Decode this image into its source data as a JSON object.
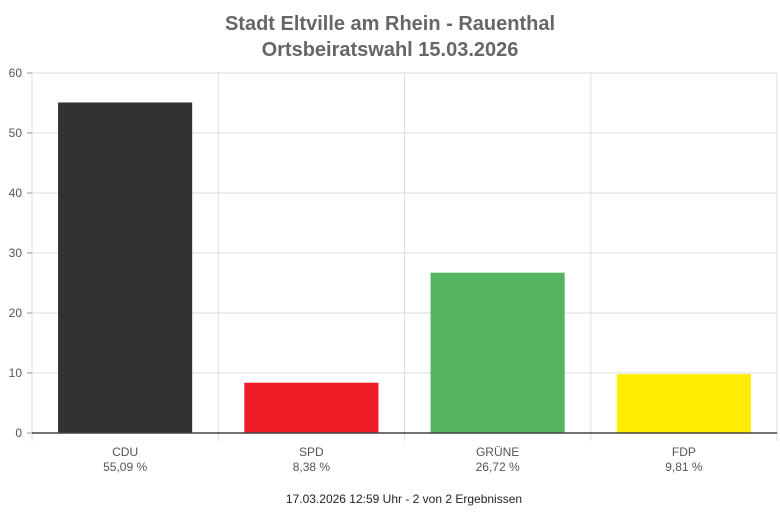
{
  "chart_data": {
    "type": "bar",
    "title": "Stadt Eltville am Rhein - Rauenthal",
    "subtitle": "Ortsbeiratswahl 15.03.2026",
    "xlabel": "",
    "ylabel": "",
    "ylim": [
      0,
      60
    ],
    "yticks": [
      "0",
      "10",
      "20",
      "30",
      "40",
      "50",
      "60"
    ],
    "grid": true,
    "categories": [
      "CDU",
      "SPD",
      "GRÜNE",
      "FDP"
    ],
    "values": [
      55.09,
      8.38,
      26.72,
      9.81
    ],
    "value_labels": [
      "55,09 %",
      "8,38 %",
      "26,72 %",
      "9,81 %"
    ],
    "colors": [
      "#333132",
      "#ee1c25",
      "#56b460",
      "#ffed00"
    ]
  },
  "footer": "17.03.2026 12:59 Uhr - 2 von 2 Ergebnissen"
}
